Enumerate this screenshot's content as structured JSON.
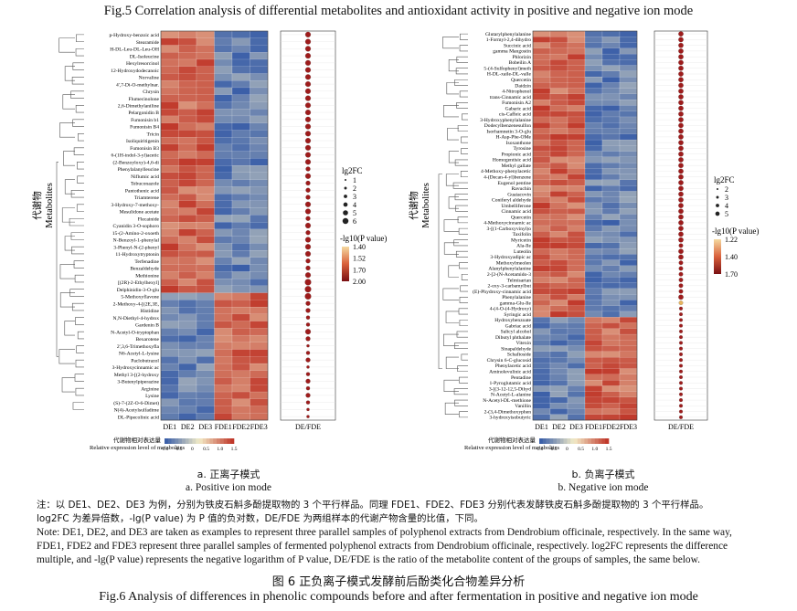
{
  "figure_title": "Fig.5   Correlation analysis of differential metabolites and antioxidant activity in positive and negative ion mode",
  "caption_cn": "图 6   正负离子模式发酵前后酚类化合物差异分析",
  "caption_en": "Fig.6   Analysis of differences in phenolic compounds before and after fermentation in positive and negative ion mode",
  "note_cn_line1": "注：以 DE1、DE2、DE3 为例，分别为铁皮石斛多酚提取物的 3 个平行样品。同理 FDE1、FDE2、FDE3 分别代表发酵铁皮石斛多酚提取物的 3 个平行样品。",
  "note_cn_line2": "log2FC 为差异倍数，-lg(P value) 为 P 值的负对数，DE/FDE 为两组样本的代谢产物含量的比值，下同。",
  "note_en_line1": "Note: DE1, DE2, and DE3 are taken as examples to represent three parallel samples of polyphenol extracts from Dendrobium officinale, respectively. In the same way,",
  "note_en_line2": "FDE1, FDE2 and FDE3 represent three parallel samples of fermented polyphenol extracts from Dendrobium officinale, respectively. log2FC represents the difference",
  "note_en_line3": "multiple, and -lg(P value) represents the negative logarithm of P value, DE/FDE is the ratio of the metabolite content of the groups of samples, the same below.",
  "colors": {
    "low": "#3b5fa8",
    "mid": "#f3ecc8",
    "high": "#c0392b",
    "dot": "#9e1b1b"
  },
  "chart_data": [
    {
      "type": "heatmap",
      "panel_cn": "a. 正离子模式",
      "panel_en": "a. Positive ion mode",
      "yaxis_cn": "代谢物",
      "yaxis_en": "Metabolites",
      "columns": [
        "DE1",
        "DE2",
        "DE3",
        "FDE1",
        "FDE2",
        "FDE3"
      ],
      "dot_column_label": "DE/FDE",
      "legend_color_cn": "代谢物相对表达量",
      "legend_color_en": "Relative expression level of metabolites",
      "legend_color_ticks": [
        "-1.0",
        "-0.5",
        "0",
        "0.5",
        "1.0",
        "1.5"
      ],
      "legend_size_title": "lg2FC",
      "legend_size_values": [
        "1",
        "2",
        "3",
        "4",
        "5",
        "6"
      ],
      "legend_p_title": "-lg10(P value)",
      "legend_p_ticks": [
        "1.40",
        "1.52",
        "1.70",
        "2.00"
      ],
      "rows": [
        "p-Hydroxy-benzoic acid",
        "Stearamide",
        "H-DL-Leu-DL-Leu-OH",
        "DL-Isoleucine",
        "Hexylresorcinol",
        "12-Hydroxydodecanoic",
        "Norvaline",
        "4',7-Di-O-methylnar.",
        "Chrysin",
        "Flumecinolone",
        "2,6-Dimethylaniline",
        "Pelargonidin B",
        "Fumonisin b1",
        "Fumonisin B4",
        "Tricin",
        "Isoliquiritigenin",
        "Fumonisin B3",
        "6-(1H-indol-3-yl)acetic",
        "(2-Benzoyloxy)-4,6-di",
        "Phenylalanylleucine",
        "Niflumic acid",
        "Tebuconazole",
        "Pantothenic acid",
        "Triamterene",
        "3-Hydroxy-7-methoxy-",
        "Mesulidone acetate",
        "Flecainide",
        "Cyanidin 3-O-sophoro",
        "15-(2-Amino-2-oxoeth",
        "N-Benzoyl-1-phenylal",
        "3-Phenyl-N-(2-phenyl",
        "11-Hydroxytryptonin",
        "Terfenadine",
        "Benzaldehyde",
        "Methionine",
        "[(2R)-2-Ethylhexyl]",
        "Delphinidin-3-O-glu",
        "5-Methoxyflavone",
        "2-Methoxy-4-[(2E,3E,",
        "Histidine",
        "N,N-Diethyl-4-hydrox",
        "Gardenin B",
        "N-Acetyl-O-tryptophan",
        "Bexarotene",
        "2',3,6-Trimethoxyfla",
        "N6-Acetyl-L-lysine",
        "Paclobutrazol",
        "3-Hydroxycinnamic ac",
        "Methyl 3-[(2-hydroxy",
        "3-Butenylpiperazine",
        "Arginine",
        "Lysine",
        "(S)-7-(2Z-O-6-Dimet)",
        "N(4)-Acetylsulfadime",
        "DL-Pipecolinic acid"
      ],
      "up_count": 37,
      "dots": [
        5,
        5,
        5,
        5,
        5,
        5,
        5,
        5,
        5,
        5,
        5,
        5,
        5,
        5,
        5,
        5,
        5,
        5,
        5,
        4,
        5,
        4,
        4,
        4,
        5,
        5,
        4,
        5,
        4,
        5,
        5,
        5,
        4,
        4,
        5,
        6,
        6,
        6,
        4,
        4,
        3,
        3,
        5,
        4,
        2,
        3,
        4,
        2,
        3,
        4,
        3,
        4,
        3,
        2,
        2
      ]
    },
    {
      "type": "heatmap",
      "panel_cn": "b. 负离子模式",
      "panel_en": "b. Negative ion mode",
      "yaxis_cn": "代谢物",
      "yaxis_en": "Metabolites",
      "columns": [
        "DE1",
        "DE2",
        "DE3",
        "FDE1",
        "FDE2",
        "FDE3"
      ],
      "dot_column_label": "DE/FDE",
      "legend_color_cn": "代谢物相对表达量",
      "legend_color_en": "Relative expression level of metabolites",
      "legend_color_ticks": [
        "-1.0",
        "-0.5",
        "0",
        "0.5",
        "1.0",
        "1.5"
      ],
      "legend_size_title": "lg2FC",
      "legend_size_values": [
        "2",
        "3",
        "4",
        "5"
      ],
      "legend_p_title": "-lg10(P value)",
      "legend_p_ticks": [
        "1.22",
        "1.40",
        "1.70"
      ],
      "rows": [
        "Glutarylphenylalanine",
        "1-Formyl-2,4-dihydro",
        "Succinic acid",
        "gamma Mangostin",
        "Phlorizin",
        "Bobeilin A",
        "5-(4-Sulfophenyl)meth",
        "H-DL-xaile-DL-valle",
        "Quercetin",
        "Daidzin",
        "4-Nitrophenol",
        "trans-Cinnamic acid",
        "Fumonisin A2",
        "Gabaric acid",
        "cis-Caffeic acid",
        "3-Hydroxyphenylalanine",
        "Dodecylbenzenesulfon",
        "Isorhamnetin 3-O-glu",
        "H-Asp-Phe-OMe",
        "Isoxanthone",
        "Tyrosine",
        "Propionic acid",
        "Homogentisic acid",
        "Methyl gallate",
        "4-Methoxy-phenylacetic",
        "4-(Decan-4-yl)benzene",
        "Eugenol pentine",
        "Ravuchin",
        "Guaiacovin",
        "Coniferyl aldehyde",
        "Umbelliferone",
        "Cinnamic acid",
        "Quercetin",
        "4-Methoxycinnamic ac",
        "3-[(1-Carboxyvinyl)o",
        "Taxifolin",
        "Myricetin",
        "Ala-Ile",
        "Luteolin",
        "3-Hydroxyadipic ac",
        "Methoxylmeolen",
        "Alanylphenylalanine",
        "2-[2-(N-Acetamido-3",
        "Telmisartan",
        "2-oxy-3-carbamylbut",
        "(E)-Phydroxy-cinnamic acid",
        "Phenylalanine",
        "gamma-Glu-Ile",
        "4-(4-O-(4-Hydroxy)",
        "Syringic acid",
        "Hydroxybenzoate",
        "Gabriac acid",
        "Salicyl alcohol",
        "Dibutyl phthalate",
        "Vitexin",
        "Sinapaldehyde",
        "Schaftoside",
        "Chrysin 6-C-glucosid",
        "Phenylacetic acid",
        "Aminolevulinic acid",
        "Pentadine",
        "1-Pyroglutamic acid",
        "3-[(3-12-12,5-Dihyd",
        "N-Acetyl-L-alanine",
        "N-Acetyl-DL-methione",
        "Vanillin",
        "2-(3,4-Dimethoxyphen",
        "3-hydroxyisobutyric"
      ],
      "up_count": 50,
      "dots": [
        5,
        5,
        5,
        5,
        5,
        5,
        5,
        5,
        5,
        5,
        5,
        5,
        5,
        5,
        5,
        5,
        5,
        5,
        5,
        5,
        5,
        5,
        5,
        5,
        5,
        5,
        5,
        5,
        5,
        5,
        5,
        5,
        5,
        5,
        5,
        5,
        5,
        4,
        5,
        5,
        4,
        4,
        4,
        4,
        4,
        4,
        5,
        4,
        3,
        3,
        3,
        3,
        3,
        3,
        3,
        3,
        3,
        3,
        3,
        3,
        3,
        3,
        3,
        3,
        3,
        3,
        3,
        3
      ]
    }
  ]
}
